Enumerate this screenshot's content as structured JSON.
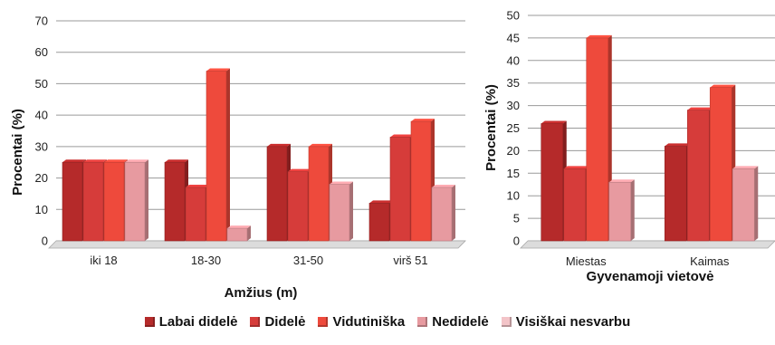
{
  "chart_data": [
    {
      "type": "bar",
      "title": "",
      "xlabel": "Amžius (m)",
      "ylabel": "Procentai (%)",
      "ylim": [
        0,
        70
      ],
      "yticks": [
        0,
        10,
        20,
        30,
        40,
        50,
        60,
        70
      ],
      "grid": true,
      "categories": [
        "iki 18",
        "18-30",
        "31-50",
        "virš 51"
      ],
      "series": [
        {
          "name": "Labai didelė",
          "values": [
            25,
            25,
            30,
            12
          ]
        },
        {
          "name": "Didelė",
          "values": [
            25,
            17,
            22,
            33
          ]
        },
        {
          "name": "Vidutiniška",
          "values": [
            25,
            54,
            30,
            38
          ]
        },
        {
          "name": "Nedidelė",
          "values": [
            25,
            4,
            18,
            17
          ]
        }
      ]
    },
    {
      "type": "bar",
      "title": "",
      "xlabel": "Gyvenamoji vietovė",
      "ylabel": "Procentai (%)",
      "ylim": [
        0,
        50
      ],
      "yticks": [
        0,
        5,
        10,
        15,
        20,
        25,
        30,
        35,
        40,
        45,
        50
      ],
      "grid": true,
      "categories": [
        "Miestas",
        "Kaimas"
      ],
      "series": [
        {
          "name": "Labai didelė",
          "values": [
            26,
            21
          ]
        },
        {
          "name": "Didelė",
          "values": [
            16,
            29
          ]
        },
        {
          "name": "Vidutiniška",
          "values": [
            45,
            34
          ]
        },
        {
          "name": "Nedidelė",
          "values": [
            13,
            16
          ]
        }
      ]
    }
  ],
  "legend": {
    "placement": "bottom",
    "items": [
      {
        "label": "Labai didelė",
        "color": "#b52a2a"
      },
      {
        "label": "Didelė",
        "color": "#d63c3a"
      },
      {
        "label": "Vidutiniška",
        "color": "#ee4a3c"
      },
      {
        "label": "Nedidelė",
        "color": "#e79aa0"
      },
      {
        "label": "Visiškai nesvarbu",
        "color": "#f3c4c8"
      }
    ]
  },
  "series_colors": [
    "#b52a2a",
    "#d63c3a",
    "#ee4a3c",
    "#e79aa0"
  ]
}
